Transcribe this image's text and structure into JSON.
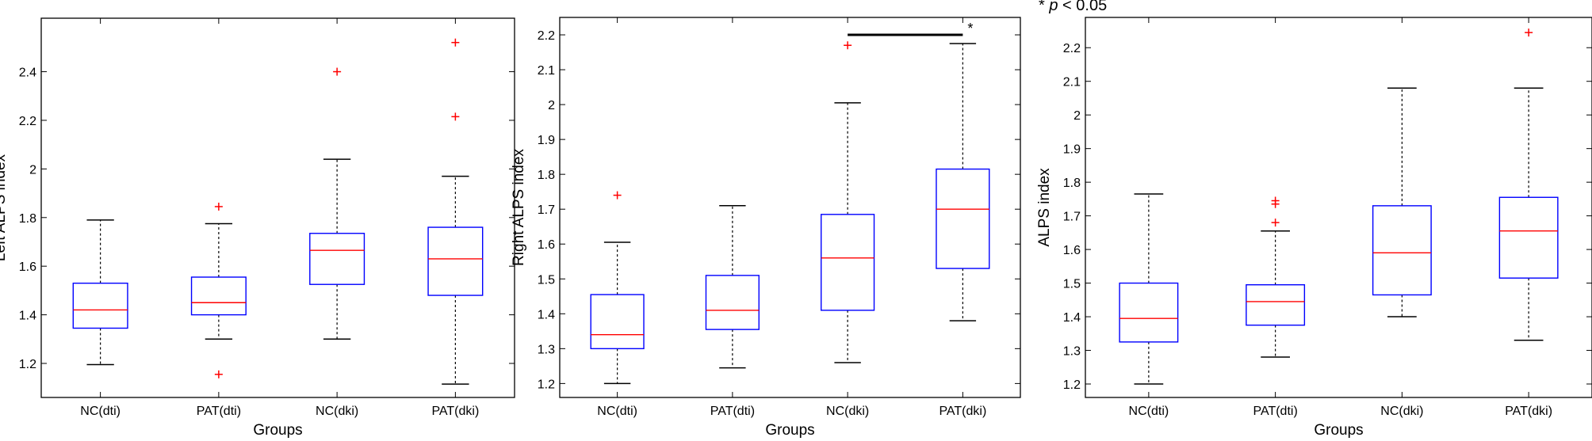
{
  "significance_note": {
    "star": "*",
    "p": "p",
    "rest": "< 0.05"
  },
  "colors": {
    "box": "#0000ff",
    "median": "#ff0000",
    "outlier": "#ff0000",
    "whisker": "#000000"
  },
  "chart_data": [
    {
      "type": "boxplot",
      "xlabel": "Groups",
      "ylabel": "Left ALPS index",
      "categories": [
        "NC(dti)",
        "PAT(dti)",
        "NC(dki)",
        "PAT(dki)"
      ],
      "ylim": [
        1.06,
        2.62
      ],
      "yticks": [
        "1.2",
        "1.4",
        "1.6",
        "1.8",
        "2",
        "2.2",
        "2.4"
      ],
      "grid": false,
      "boxes": [
        {
          "whisker_low": 1.195,
          "q1": 1.345,
          "median": 1.42,
          "q3": 1.53,
          "whisker_high": 1.79,
          "outliers": []
        },
        {
          "whisker_low": 1.3,
          "q1": 1.4,
          "median": 1.45,
          "q3": 1.555,
          "whisker_high": 1.775,
          "outliers": [
            1.845,
            1.155
          ]
        },
        {
          "whisker_low": 1.3,
          "q1": 1.525,
          "median": 1.665,
          "q3": 1.735,
          "whisker_high": 2.04,
          "outliers": [
            2.4
          ]
        },
        {
          "whisker_low": 1.115,
          "q1": 1.48,
          "median": 1.63,
          "q3": 1.76,
          "whisker_high": 1.97,
          "outliers": [
            2.215,
            2.52
          ]
        }
      ]
    },
    {
      "type": "boxplot",
      "xlabel": "Groups",
      "ylabel": "Right ALPS index",
      "categories": [
        "NC(dti)",
        "PAT(dti)",
        "NC(dki)",
        "PAT(dki)"
      ],
      "ylim": [
        1.16,
        2.25
      ],
      "yticks": [
        "1.2",
        "1.3",
        "1.4",
        "1.5",
        "1.6",
        "1.7",
        "1.8",
        "1.9",
        "2",
        "2.1",
        "2.2"
      ],
      "grid": false,
      "boxes": [
        {
          "whisker_low": 1.2,
          "q1": 1.3,
          "median": 1.34,
          "q3": 1.455,
          "whisker_high": 1.605,
          "outliers": [
            1.74
          ]
        },
        {
          "whisker_low": 1.245,
          "q1": 1.355,
          "median": 1.41,
          "q3": 1.51,
          "whisker_high": 1.71,
          "outliers": []
        },
        {
          "whisker_low": 1.26,
          "q1": 1.41,
          "median": 1.56,
          "q3": 1.685,
          "whisker_high": 2.005,
          "outliers": [
            2.17
          ]
        },
        {
          "whisker_low": 1.38,
          "q1": 1.53,
          "median": 1.7,
          "q3": 1.815,
          "whisker_high": 2.175,
          "outliers": []
        }
      ],
      "significance": {
        "from": 2,
        "to": 3,
        "y": 2.2,
        "label": "*"
      }
    },
    {
      "type": "boxplot",
      "xlabel": "Groups",
      "ylabel": "ALPS index",
      "categories": [
        "NC(dti)",
        "PAT(dti)",
        "NC(dki)",
        "PAT(dki)"
      ],
      "ylim": [
        1.16,
        2.29
      ],
      "yticks": [
        "1.2",
        "1.3",
        "1.4",
        "1.5",
        "1.6",
        "1.7",
        "1.8",
        "1.9",
        "2",
        "2.1",
        "2.2"
      ],
      "grid": false,
      "boxes": [
        {
          "whisker_low": 1.2,
          "q1": 1.325,
          "median": 1.395,
          "q3": 1.5,
          "whisker_high": 1.765,
          "outliers": []
        },
        {
          "whisker_low": 1.28,
          "q1": 1.375,
          "median": 1.445,
          "q3": 1.495,
          "whisker_high": 1.655,
          "outliers": [
            1.68,
            1.735,
            1.745
          ]
        },
        {
          "whisker_low": 1.4,
          "q1": 1.465,
          "median": 1.59,
          "q3": 1.73,
          "whisker_high": 2.08,
          "outliers": []
        },
        {
          "whisker_low": 1.33,
          "q1": 1.515,
          "median": 1.655,
          "q3": 1.755,
          "whisker_high": 2.08,
          "outliers": [
            2.245
          ]
        }
      ]
    }
  ]
}
